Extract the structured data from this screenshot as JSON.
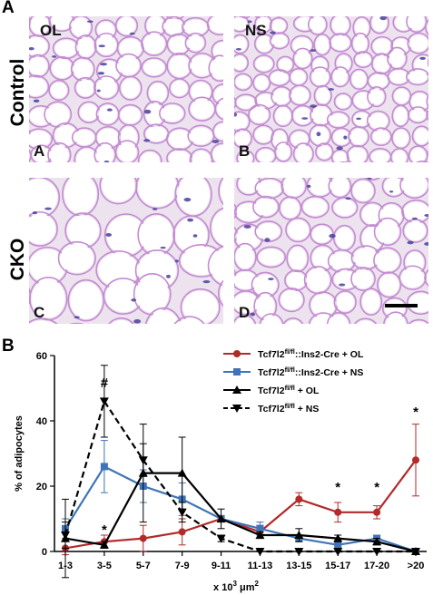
{
  "figure": {
    "panel_A_letter": "A",
    "panel_B_letter": "B",
    "row_labels": [
      "Control",
      "CKO"
    ],
    "tiles": [
      {
        "corner": "OL",
        "letter": "A"
      },
      {
        "corner": "NS",
        "letter": "B"
      },
      {
        "corner": "",
        "letter": "C"
      },
      {
        "corner": "",
        "letter": "D"
      }
    ]
  },
  "colors": {
    "red": "#b22a2a",
    "blue": "#3f74b8",
    "black": "#000000",
    "tissue_bg": "#ece3ef",
    "membrane": "#c48bd1",
    "nucleus": "#4a3f9a"
  },
  "chart_data": {
    "type": "line",
    "ylabel": "% of adipocytes",
    "xlabel_base": "x 10",
    "xlabel_exp": "3",
    "xlabel_unit": "μm",
    "xlabel_unit_exp": "2",
    "ylim": [
      0,
      60
    ],
    "yticks": [
      "0",
      "20",
      "40",
      "60"
    ],
    "categories": [
      "1-3",
      "3-5",
      "5-7",
      "7-9",
      "9-11",
      "11-13",
      "13-15",
      "15-17",
      "17-20",
      ">20"
    ],
    "series": [
      {
        "name_base": "Tcf7l2",
        "name_sup": "fl/fl",
        "name_rest": "::Ins2-Cre + OL",
        "color": "#b22a2a",
        "marker": "circle",
        "dash": false,
        "values": [
          1,
          3,
          4,
          6,
          10,
          6,
          16,
          12,
          12,
          28
        ],
        "errors": [
          2,
          2,
          4,
          4,
          1,
          2,
          2,
          3,
          2,
          11
        ]
      },
      {
        "name_base": "Tcf7l2",
        "name_sup": "fl/fl",
        "name_rest": "::Ins2-Cre + NS",
        "color": "#3f74b8",
        "marker": "square",
        "dash": false,
        "values": [
          7,
          26,
          20,
          16,
          10,
          7,
          4,
          2,
          4,
          0
        ],
        "errors": [
          3,
          8,
          5,
          5,
          1,
          2,
          1,
          1,
          1,
          0
        ]
      },
      {
        "name_base": "Tcf7l2",
        "name_sup": "fl/fl",
        "name_rest": " + OL",
        "color": "#000000",
        "marker": "triangle-up",
        "dash": false,
        "values": [
          4,
          2,
          24,
          24,
          10,
          5,
          5,
          4,
          3,
          0
        ],
        "errors": [
          12,
          1,
          15,
          11,
          3,
          1,
          2,
          1,
          1,
          0
        ]
      },
      {
        "name_base": "Tcf7l2",
        "name_sup": "fl/fl",
        "name_rest": " + NS",
        "color": "#000000",
        "marker": "triangle-down",
        "dash": true,
        "values": [
          5,
          46,
          28,
          12,
          4,
          0,
          0,
          0,
          0,
          0
        ],
        "errors": [
          4,
          11,
          5,
          3,
          1,
          0,
          0,
          0,
          0,
          0
        ]
      }
    ],
    "annotations": [
      {
        "text": "#",
        "category": "3-5",
        "value": 52
      },
      {
        "text": "*",
        "category": "3-5",
        "value": 7
      },
      {
        "text": "*",
        "category": "15-17",
        "value": 20
      },
      {
        "text": "*",
        "category": "17-20",
        "value": 20
      },
      {
        "text": "*",
        "category": ">20",
        "value": 43
      }
    ],
    "legend_position": "top-right",
    "grid": false
  }
}
